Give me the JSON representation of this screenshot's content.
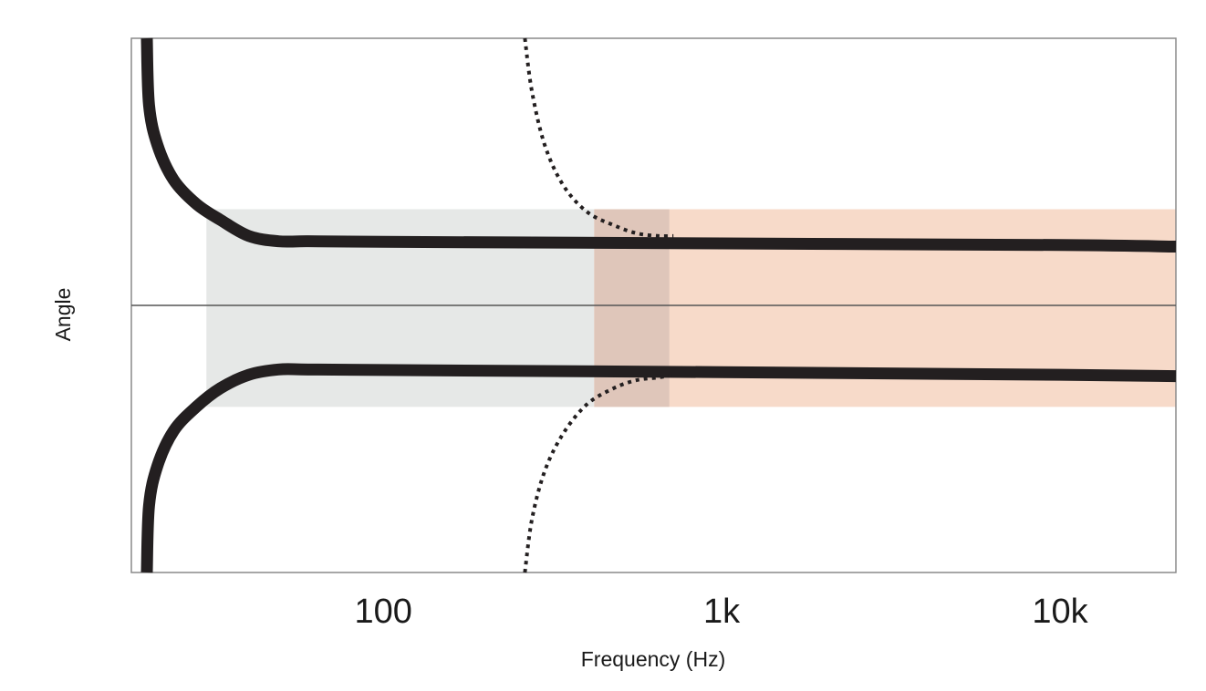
{
  "chart_data": {
    "type": "line",
    "title": "",
    "xlabel": "Frequency (Hz)",
    "ylabel": "Angle",
    "x_scale": "log",
    "xlim": [
      18,
      22000
    ],
    "ylim": [
      -1,
      1
    ],
    "x_ticks": [
      {
        "value": 100,
        "label": "100"
      },
      {
        "value": 1000,
        "label": "1k"
      },
      {
        "value": 10000,
        "label": "10k"
      }
    ],
    "grid": false,
    "legend": "none",
    "center_line": {
      "y": 0,
      "color": "#555555"
    },
    "regions": [
      {
        "x": [
          30,
          420
        ],
        "y": [
          -0.38,
          0.36
        ],
        "color": "#e6e8e7"
      },
      {
        "x": [
          420,
          22000
        ],
        "y": [
          -0.38,
          0.36
        ],
        "color": "#f7dac9"
      },
      {
        "x": [
          420,
          700
        ],
        "y": [
          -0.38,
          0.36
        ],
        "color": "#dfc6ba"
      }
    ],
    "series": [
      {
        "style": "solid",
        "color": "#231f20",
        "points": [
          [
            20,
            1.0
          ],
          [
            20.3,
            0.75
          ],
          [
            21.5,
            0.6
          ],
          [
            24,
            0.47
          ],
          [
            28,
            0.38
          ],
          [
            33,
            0.32
          ],
          [
            40,
            0.26
          ],
          [
            49,
            0.24
          ],
          [
            60,
            0.24
          ],
          [
            100,
            0.238
          ],
          [
            1000,
            0.232
          ],
          [
            10000,
            0.226
          ],
          [
            22000,
            0.22
          ]
        ]
      },
      {
        "style": "solid",
        "color": "#231f20",
        "points": [
          [
            20,
            -1.0
          ],
          [
            20.3,
            -0.75
          ],
          [
            21.5,
            -0.6
          ],
          [
            24,
            -0.47
          ],
          [
            28,
            -0.38
          ],
          [
            33,
            -0.31
          ],
          [
            40,
            -0.26
          ],
          [
            49,
            -0.24
          ],
          [
            60,
            -0.24
          ],
          [
            100,
            -0.242
          ],
          [
            1000,
            -0.25
          ],
          [
            10000,
            -0.26
          ],
          [
            22000,
            -0.265
          ]
        ]
      },
      {
        "style": "dotted",
        "color": "#231f20",
        "points": [
          [
            262,
            1.0
          ],
          [
            275,
            0.8
          ],
          [
            300,
            0.6
          ],
          [
            340,
            0.45
          ],
          [
            400,
            0.35
          ],
          [
            480,
            0.3
          ],
          [
            560,
            0.27
          ],
          [
            650,
            0.26
          ],
          [
            720,
            0.26
          ]
        ]
      },
      {
        "style": "dotted",
        "color": "#231f20",
        "points": [
          [
            262,
            -1.0
          ],
          [
            275,
            -0.8
          ],
          [
            300,
            -0.62
          ],
          [
            340,
            -0.48
          ],
          [
            400,
            -0.37
          ],
          [
            480,
            -0.31
          ],
          [
            560,
            -0.28
          ],
          [
            650,
            -0.27
          ],
          [
            720,
            -0.26
          ]
        ]
      }
    ]
  }
}
